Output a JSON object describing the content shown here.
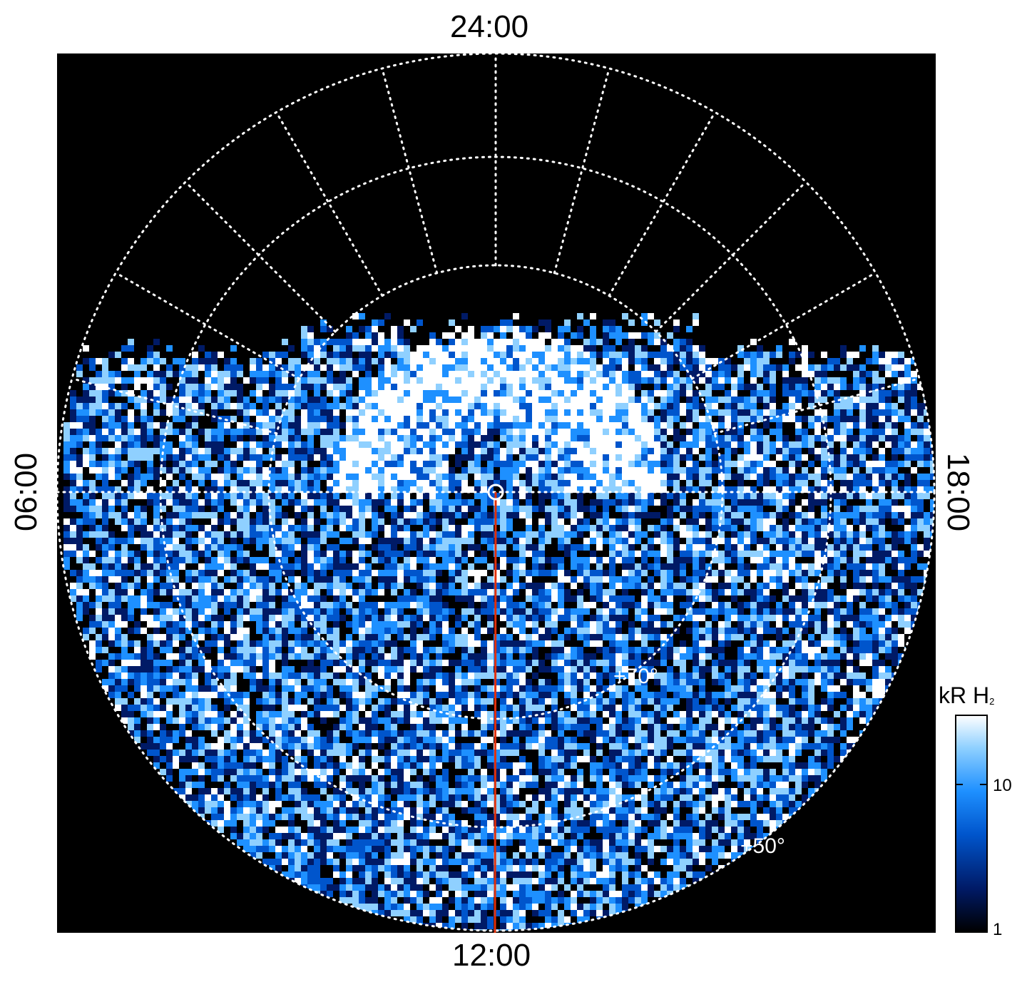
{
  "local_time_labels": {
    "top": "24:00",
    "bottom": "12:00",
    "left": "06:00",
    "right": "18:00"
  },
  "latitude_labels": [
    "+70°",
    "+50°"
  ],
  "colorbar": {
    "unit": "kR H",
    "subscript": "2",
    "ticks": [
      "10",
      "1"
    ],
    "scale": "log",
    "colors": [
      "#000000",
      "#001a66",
      "#0055cc",
      "#1e90ff",
      "#8fd0ff",
      "#ffffff"
    ]
  },
  "colors": {
    "background": "#000000",
    "grid": "#ffffff",
    "meridian_line": "#e0300a"
  }
}
